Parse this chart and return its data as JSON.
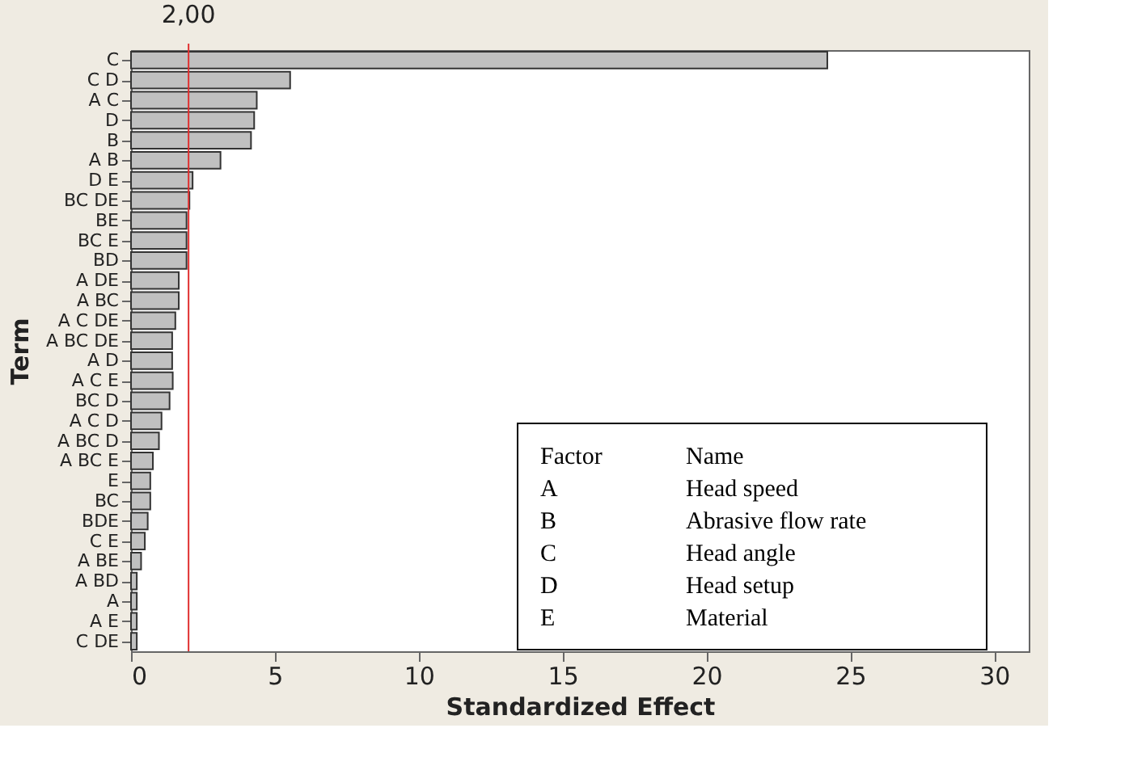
{
  "chart_data": {
    "type": "bar",
    "orientation": "horizontal",
    "categories": [
      "C",
      "C D",
      "A C",
      "D",
      "B",
      "A B",
      "D E",
      "BC DE",
      "BE",
      "BC E",
      "BD",
      "A DE",
      "A BC",
      "A C DE",
      "A BC DE",
      "A D",
      "A C E",
      "BC D",
      "A C D",
      "A BC D",
      "A BC E",
      "E",
      "BC",
      "BDE",
      "C E",
      "A BE",
      "A BD",
      "A",
      "A E",
      "C DE"
    ],
    "values": [
      24.2,
      5.53,
      4.37,
      4.28,
      4.17,
      3.11,
      2.14,
      2.03,
      1.93,
      1.93,
      1.93,
      1.66,
      1.66,
      1.54,
      1.43,
      1.43,
      1.45,
      1.34,
      1.06,
      0.97,
      0.76,
      0.67,
      0.67,
      0.58,
      0.48,
      0.35,
      0.2,
      0.2,
      0.2,
      0.2
    ],
    "color": "#c0c0c0",
    "xlim": [
      0,
      31.2
    ],
    "xticks": [
      0,
      5,
      10,
      15,
      20,
      25,
      30
    ],
    "xlabel": "Standardized Effect",
    "ylabel": "Term",
    "grid": false,
    "ref_lines": [
      {
        "axis": "x",
        "value": 2.0,
        "label": "2,00",
        "color": "#e03030"
      }
    ],
    "annotations": [
      "Factor",
      "Name",
      "A",
      "Head speed",
      "B",
      "Abrasive flow rate",
      "C",
      "Head angle",
      "D",
      "Head setup",
      "E",
      "Material"
    ]
  }
}
